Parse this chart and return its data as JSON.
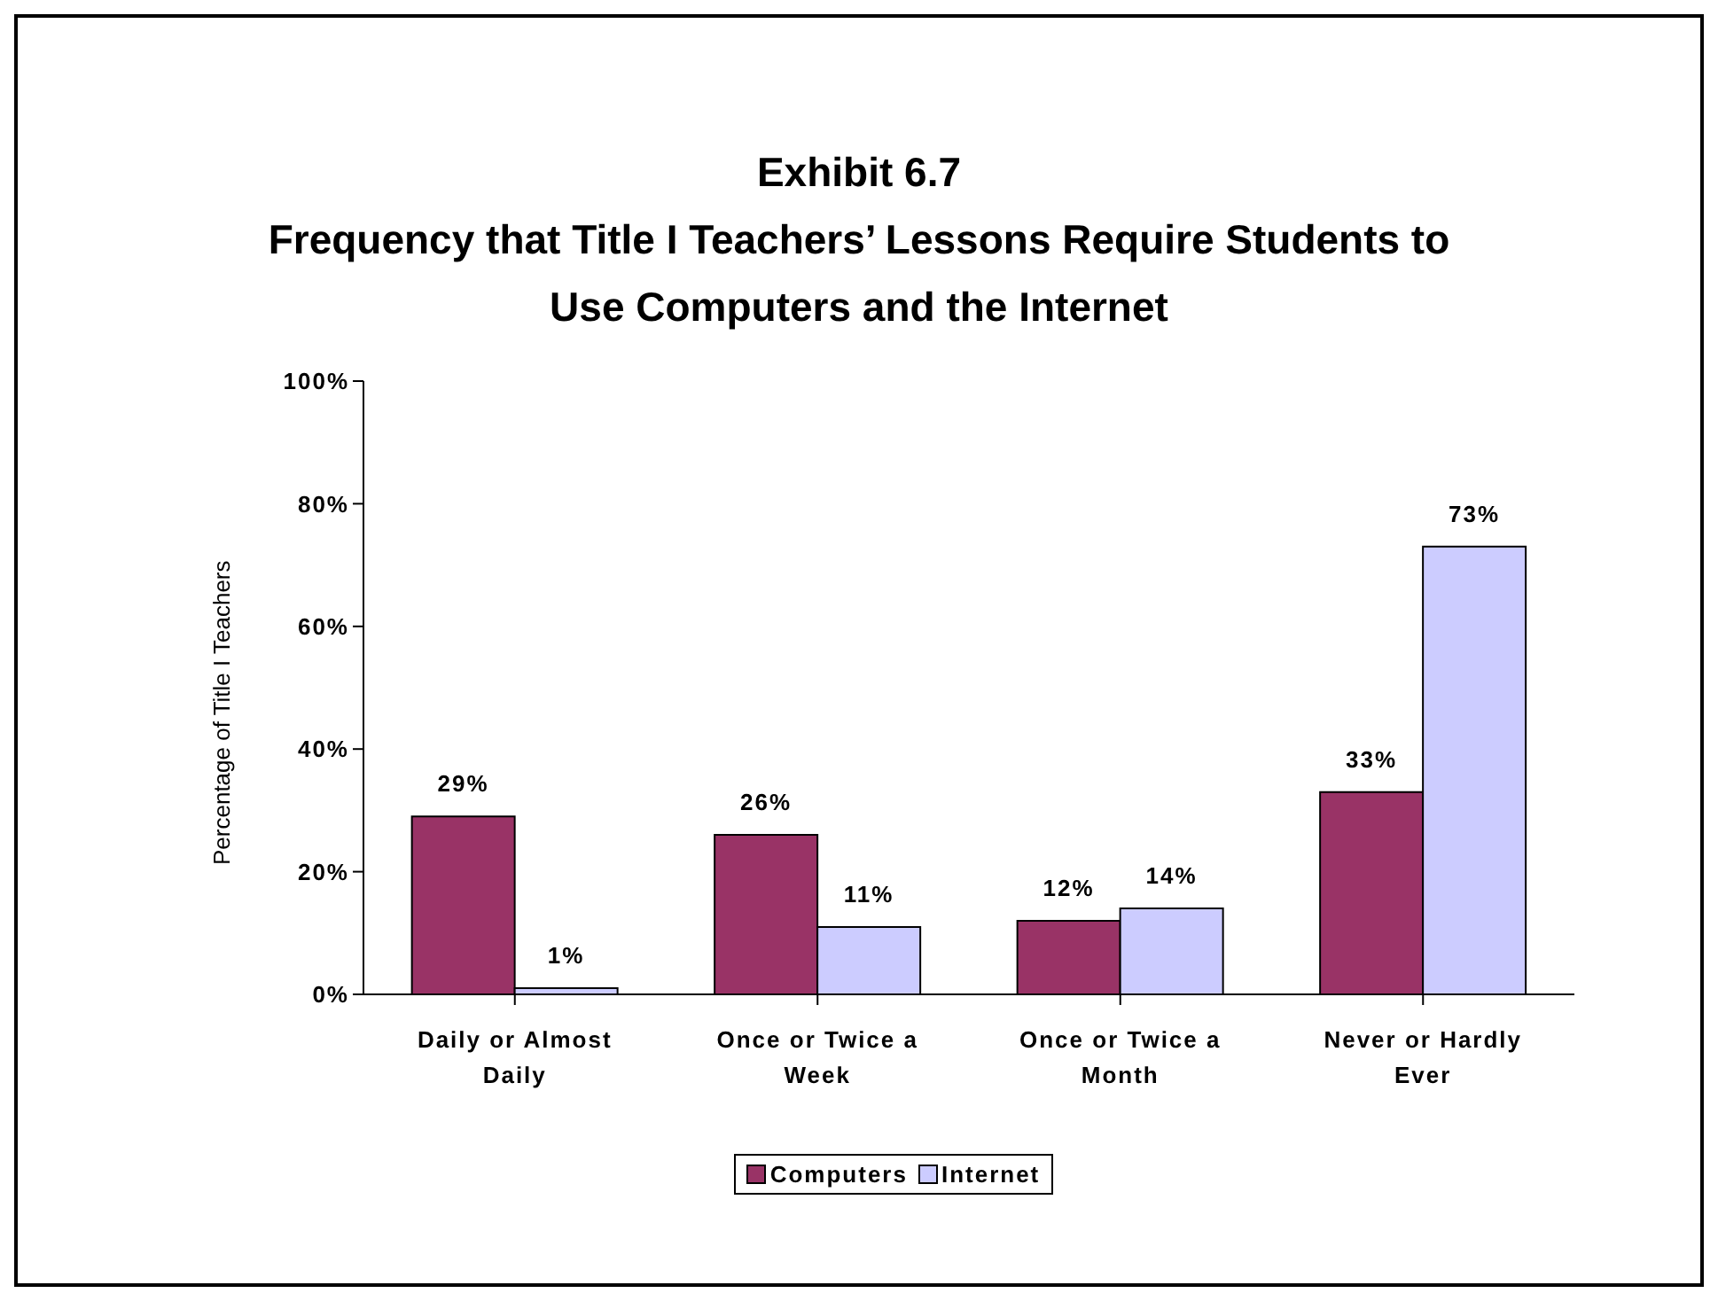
{
  "chart_data": {
    "type": "bar",
    "title": "Exhibit 6.7",
    "subtitle": "Frequency that Title I Teachers’ Lessons Require Students to Use Computers and the Internet",
    "ylabel": "Percentage of Title I Teachers",
    "categories": [
      "Daily or Almost Daily",
      "Once or Twice a Week",
      "Once or Twice a Month",
      "Never or Hardly Ever"
    ],
    "series": [
      {
        "name": "Computers",
        "color": "#993366",
        "values": [
          29,
          26,
          12,
          33
        ],
        "value_labels": [
          "29%",
          "26%",
          "12%",
          "33%"
        ]
      },
      {
        "name": "Internet",
        "color": "#ccccff",
        "values": [
          1,
          11,
          14,
          73
        ],
        "value_labels": [
          "1%",
          "11%",
          "14%",
          "73%"
        ]
      }
    ],
    "ylim": [
      0,
      100
    ],
    "yticks": [
      {
        "value": 0,
        "label": "0%"
      },
      {
        "value": 20,
        "label": "20%"
      },
      {
        "value": 40,
        "label": "40%"
      },
      {
        "value": 60,
        "label": "60%"
      },
      {
        "value": 80,
        "label": "80%"
      },
      {
        "value": 100,
        "label": "100%"
      }
    ],
    "grid": false,
    "legend": "bottom"
  }
}
